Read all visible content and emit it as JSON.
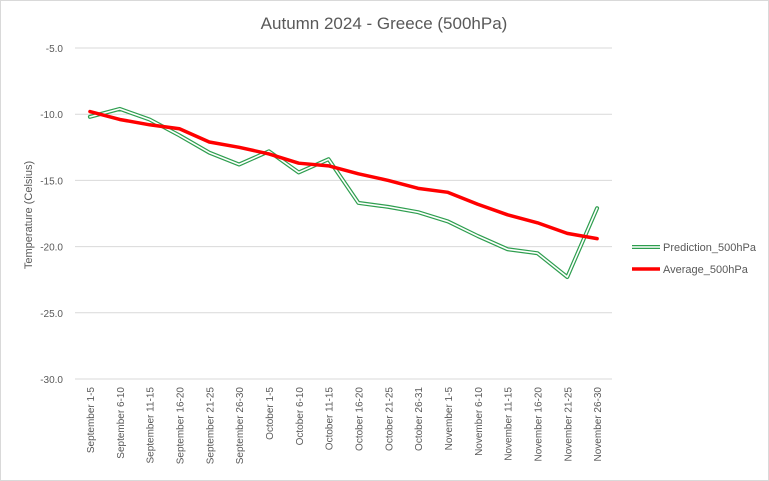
{
  "chart_data": {
    "type": "line",
    "title": "Autumn 2024 - Greece (500hPa)",
    "ylabel": "Temperature (Celsius)",
    "xlabel": "",
    "ylim": [
      -30,
      -5
    ],
    "yticks": [
      "-5.0",
      "-10.0",
      "-15.0",
      "-20.0",
      "-25.0",
      "-30.0"
    ],
    "ytick_values": [
      -5,
      -10,
      -15,
      -20,
      -25,
      -30
    ],
    "grid": "horizontal",
    "legend_position": "right",
    "categories": [
      "September 1-5",
      "September 6-10",
      "September 11-15",
      "September 16-20",
      "September 21-25",
      "September 26-30",
      "October 1-5",
      "October 6-10",
      "October 11-15",
      "October 16-20",
      "October 21-25",
      "October 26-31",
      "November 1-5",
      "November 6-10",
      "November 11-15",
      "November 16-20",
      "November 21-25",
      "November 26-30"
    ],
    "series": [
      {
        "name": "Prediction_500hPa",
        "color": "#2e9e4f",
        "style": "double-line",
        "values": [
          -10.2,
          -9.6,
          -10.4,
          -11.6,
          -12.9,
          -13.8,
          -12.8,
          -14.4,
          -13.4,
          -16.7,
          -17.0,
          -17.4,
          -18.1,
          -19.2,
          -20.2,
          -20.5,
          -22.3,
          -17.1
        ]
      },
      {
        "name": "Average_500hPa",
        "color": "#ff0000",
        "style": "solid-thick",
        "values": [
          -9.8,
          -10.4,
          -10.8,
          -11.1,
          -12.1,
          -12.5,
          -13.0,
          -13.7,
          -13.9,
          -14.5,
          -15.0,
          -15.6,
          -15.9,
          -16.8,
          -17.6,
          -18.2,
          -19.0,
          -19.4
        ]
      }
    ]
  }
}
